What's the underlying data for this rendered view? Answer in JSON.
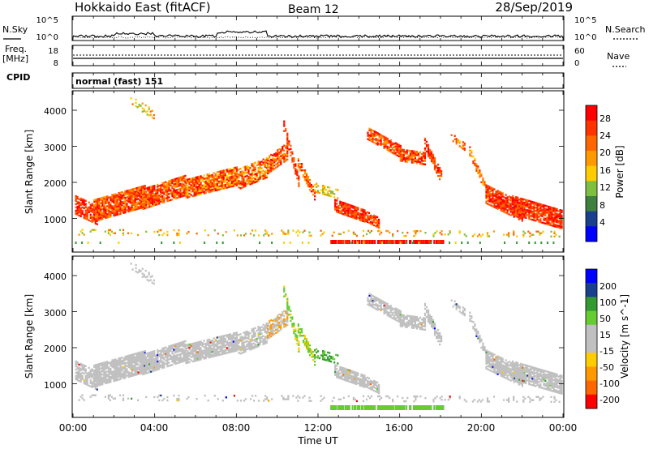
{
  "header": {
    "station": "Hokkaido East (fitACF)",
    "beam": "Beam 12",
    "date": "28/Sep/2019"
  },
  "noise_panel": {
    "left_label": "N.Sky",
    "right_label": "N.Search",
    "left_ticks": [
      "10^5",
      "10^0"
    ],
    "right_ticks": [
      "10^5",
      "10^0"
    ]
  },
  "freq_panel": {
    "left_label_1": "Freq.",
    "left_label_2": "[MHz]",
    "right_label": "Nave",
    "left_ticks": [
      "18",
      "8"
    ],
    "right_ticks": [
      "60",
      "0"
    ]
  },
  "cpid_panel": {
    "label": "CPID",
    "mode_text": "normal (fast) 151"
  },
  "x_axis": {
    "label": "Time UT",
    "ticks": [
      "00:00",
      "04:00",
      "08:00",
      "12:00",
      "16:00",
      "20:00",
      "00:00"
    ]
  },
  "colors": {
    "power": [
      "#0000ff",
      "#1b3f8f",
      "#3f7f3f",
      "#7fbf3f",
      "#ffcc00",
      "#ff9900",
      "#ff6600",
      "#ff3300",
      "#ff0000"
    ],
    "velocity": [
      "#ff0000",
      "#ff6600",
      "#ff9900",
      "#ffcc00",
      "#c0c0c0",
      "#c0c0c0",
      "#66cc33",
      "#339933",
      "#1b3f8f",
      "#0000ff"
    ],
    "ground_scatter": "#c0c0c0"
  },
  "chart_data": [
    {
      "type": "line",
      "name": "noise",
      "y_scale": "log",
      "ylim": [
        1,
        100000
      ],
      "x": [
        "00:00",
        "24:00"
      ],
      "ticks": [
        "10^5",
        "10^0"
      ]
    },
    {
      "type": "line",
      "name": "freq_nave",
      "ylim_freq_mhz": [
        8,
        18
      ],
      "ylim_nave": [
        0,
        60
      ],
      "freq_mhz_approx": 11,
      "nave_approx": 19
    },
    {
      "type": "heatmap",
      "name": "power",
      "xlim_hours": [
        0,
        24
      ],
      "ylim_km": [
        200,
        4600
      ],
      "ylabel": "Slant Range [km]",
      "y_ticks": [
        "4000",
        "3000",
        "2000",
        "1000"
      ],
      "colorbar": {
        "label": "Power [dB]",
        "range": [
          0,
          30
        ],
        "ticks": [
          "28",
          "24",
          "20",
          "16",
          "12",
          "8",
          "4"
        ]
      }
    },
    {
      "type": "heatmap",
      "name": "velocity",
      "xlim_hours": [
        0,
        24
      ],
      "ylim_km": [
        200,
        4600
      ],
      "ylabel": "Slant Range [km]",
      "y_ticks": [
        "4000",
        "3000",
        "2000",
        "1000"
      ],
      "colorbar": {
        "label": "Velocity [m s^-1]",
        "range": [
          -250,
          250
        ],
        "ticks": [
          "200",
          "100",
          "50",
          "15",
          "-15",
          "-50",
          "-100",
          "-200"
        ]
      }
    }
  ]
}
